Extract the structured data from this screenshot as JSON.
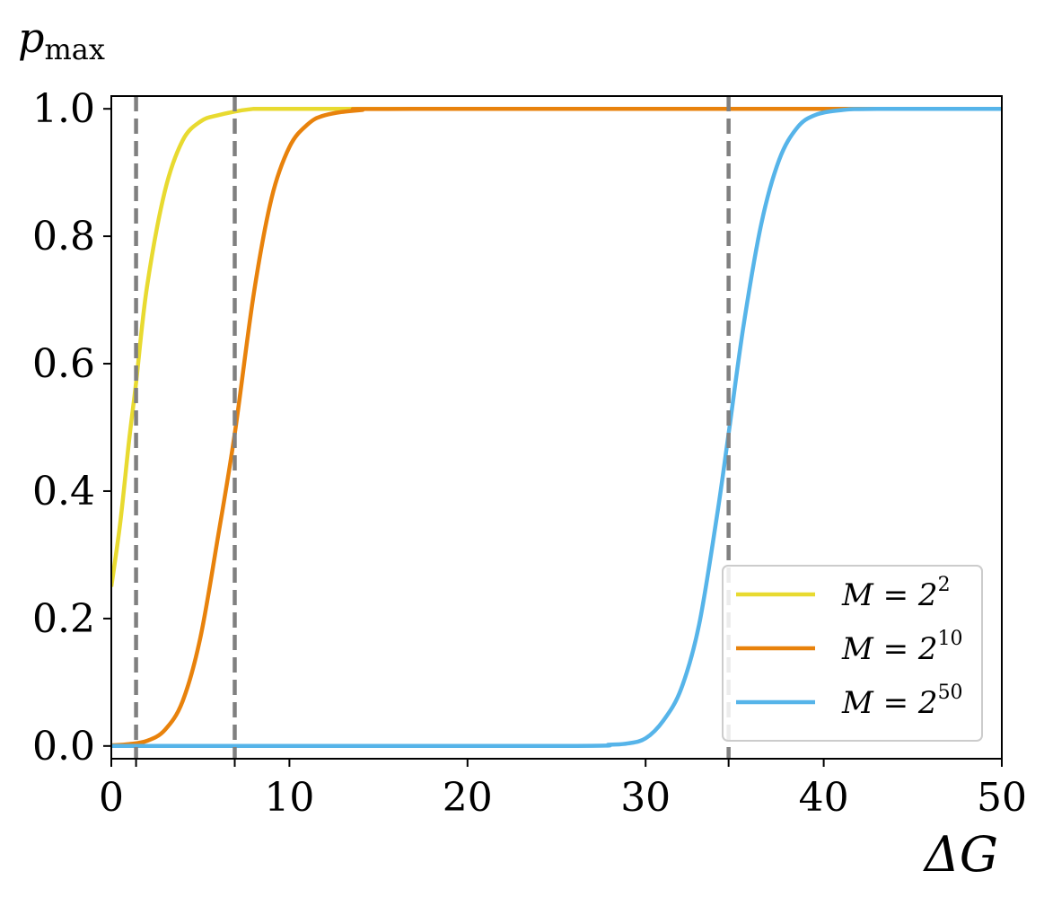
{
  "chart_data": {
    "type": "line",
    "xlabel": "ΔG",
    "ylabel_base": "p",
    "ylabel_sub": "max",
    "xlim": [
      0,
      50
    ],
    "ylim": [
      -0.02,
      1.02
    ],
    "xticks": [
      0,
      10,
      20,
      30,
      40,
      50
    ],
    "xtick_labels": [
      "0",
      "10",
      "20",
      "30",
      "40",
      "50"
    ],
    "yticks": [
      0.0,
      0.2,
      0.4,
      0.6,
      0.8,
      1.0
    ],
    "ytick_labels": [
      "0.0",
      "0.2",
      "0.4",
      "0.6",
      "0.8",
      "1.0"
    ],
    "grid": false,
    "legend_position": "lower-right",
    "vlines": [
      1.39,
      6.93,
      34.66
    ],
    "vline_color": "#808080",
    "series": [
      {
        "name": "M = 2^2",
        "legend_prefix": "M = 2",
        "legend_exp": "2",
        "color": "#E8DA30",
        "x": [
          0,
          0.5,
          1.0,
          1.39,
          2,
          3,
          4,
          5,
          6,
          8,
          10,
          13,
          50
        ],
        "values": [
          0.25,
          0.35,
          0.48,
          0.57,
          0.72,
          0.87,
          0.95,
          0.98,
          0.99,
          1.0,
          1.0,
          1.0,
          1.0
        ]
      },
      {
        "name": "M = 2^10",
        "legend_prefix": "M = 2",
        "legend_exp": "10",
        "color": "#E8820C",
        "x": [
          0,
          1,
          2,
          3,
          4,
          5,
          6,
          6.93,
          8,
          9,
          10,
          11,
          12,
          14,
          17,
          50
        ],
        "values": [
          0.001,
          0.003,
          0.008,
          0.025,
          0.07,
          0.17,
          0.33,
          0.49,
          0.71,
          0.86,
          0.94,
          0.975,
          0.99,
          0.998,
          1.0,
          1.0
        ]
      },
      {
        "name": "M = 2^50",
        "legend_prefix": "M = 2",
        "legend_exp": "50",
        "color": "#56B4E9",
        "x": [
          0,
          25,
          28,
          29,
          30,
          31,
          32,
          33,
          34,
          34.66,
          35.5,
          36.5,
          37.5,
          38.5,
          39.5,
          41,
          43,
          50
        ],
        "values": [
          0.0,
          0.0,
          0.002,
          0.004,
          0.012,
          0.04,
          0.09,
          0.19,
          0.36,
          0.49,
          0.66,
          0.82,
          0.92,
          0.97,
          0.99,
          0.998,
          1.0,
          1.0
        ]
      }
    ]
  }
}
